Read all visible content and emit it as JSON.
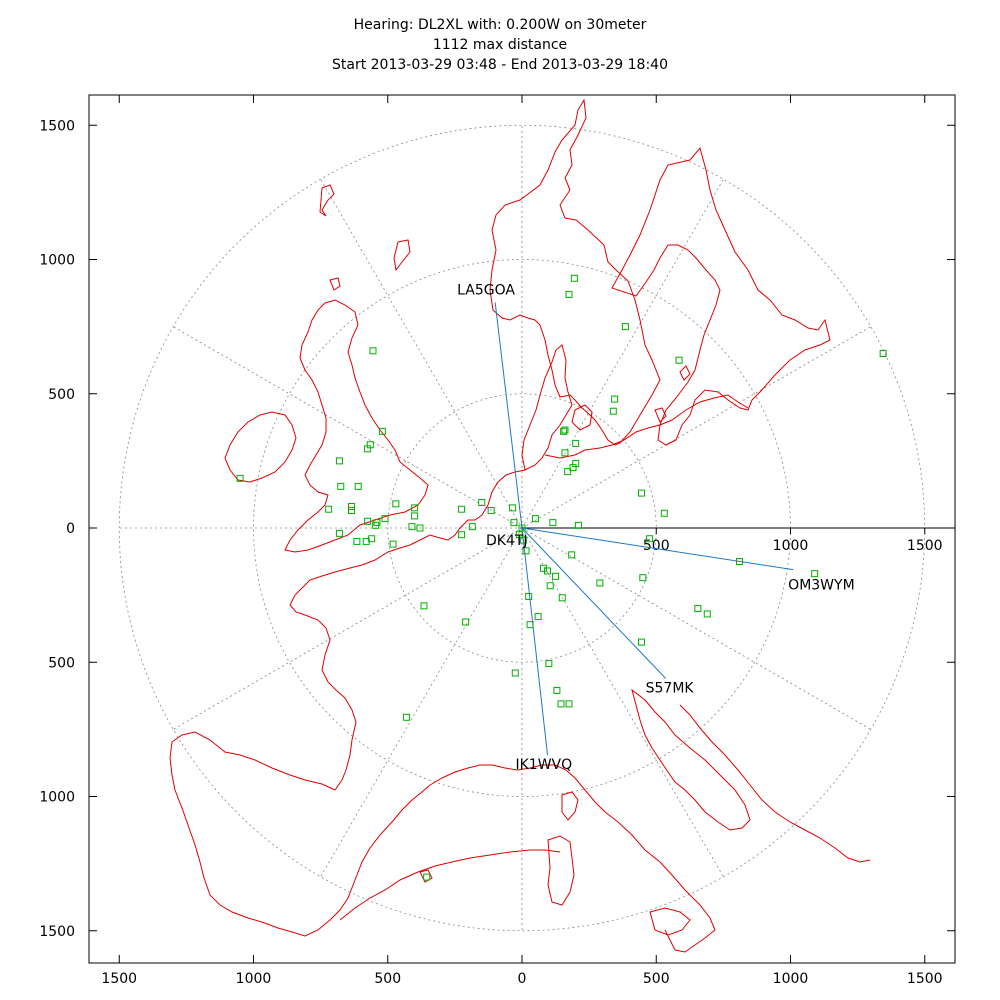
{
  "title": {
    "line1": "Hearing: DL2XL with: 0.200W on 30meter",
    "line2": "1112 max distance",
    "line3": "Start 2013-03-29 03:48 - End 2013-03-29 18:40"
  },
  "colors": {
    "coast": "#e00000",
    "spot": "#00b000",
    "link": "#1e78c8",
    "grid": "#888888",
    "frame": "#000000"
  },
  "chart_data": {
    "type": "scatter",
    "xlim": [
      -1500,
      1500
    ],
    "ylim": [
      -1500,
      1500
    ],
    "x_ticks": [
      "1500",
      "1000",
      "500",
      "0",
      "500",
      "1000",
      "1500"
    ],
    "x_tick_values": [
      -1500,
      -1000,
      -500,
      0,
      500,
      1000,
      1500
    ],
    "y_ticks": [
      "1500",
      "1000",
      "500",
      "0",
      "500",
      "1000",
      "1500"
    ],
    "y_tick_values": [
      1500,
      1000,
      500,
      0,
      -500,
      -1000,
      -1500
    ],
    "inner_axis_ticks": [
      "500",
      "1000",
      "1500"
    ],
    "inner_axis_tick_values": [
      500,
      1000,
      1500
    ],
    "range_rings": [
      500,
      1000,
      1500
    ],
    "grid": true,
    "center_station": {
      "label": "DK4TJ",
      "x": 0,
      "y": 0
    },
    "stations": [
      {
        "label": "LA5GOA",
        "x": -100,
        "y": 840
      },
      {
        "label": "OM3WYM",
        "x": 1010,
        "y": -155
      },
      {
        "label": "S57MK",
        "x": 535,
        "y": -560
      },
      {
        "label": "IK1WVQ",
        "x": 95,
        "y": -845
      }
    ],
    "spots": [
      [
        195,
        930
      ],
      [
        175,
        870
      ],
      [
        385,
        750
      ],
      [
        1345,
        650
      ],
      [
        585,
        625
      ],
      [
        -555,
        660
      ],
      [
        345,
        480
      ],
      [
        340,
        435
      ],
      [
        160,
        365
      ],
      [
        155,
        360
      ],
      [
        200,
        315
      ],
      [
        160,
        280
      ],
      [
        200,
        240
      ],
      [
        190,
        225
      ],
      [
        170,
        210
      ],
      [
        -520,
        360
      ],
      [
        -565,
        310
      ],
      [
        -575,
        295
      ],
      [
        -680,
        250
      ],
      [
        -1050,
        185
      ],
      [
        -675,
        155
      ],
      [
        -610,
        155
      ],
      [
        -470,
        90
      ],
      [
        -635,
        80
      ],
      [
        -635,
        65
      ],
      [
        -720,
        70
      ],
      [
        -400,
        75
      ],
      [
        -400,
        45
      ],
      [
        -510,
        35
      ],
      [
        -575,
        25
      ],
      [
        -540,
        20
      ],
      [
        -545,
        10
      ],
      [
        -410,
        5
      ],
      [
        -380,
        0
      ],
      [
        -680,
        -20
      ],
      [
        -615,
        -50
      ],
      [
        -580,
        -50
      ],
      [
        -560,
        -40
      ],
      [
        -480,
        -60
      ],
      [
        -150,
        95
      ],
      [
        -225,
        70
      ],
      [
        -115,
        65
      ],
      [
        -35,
        75
      ],
      [
        -30,
        20
      ],
      [
        -185,
        5
      ],
      [
        -225,
        -25
      ],
      [
        -10,
        -25
      ],
      [
        5,
        -45
      ],
      [
        15,
        -85
      ],
      [
        50,
        35
      ],
      [
        115,
        20
      ],
      [
        210,
        10
      ],
      [
        445,
        130
      ],
      [
        475,
        -40
      ],
      [
        530,
        55
      ],
      [
        185,
        -100
      ],
      [
        290,
        -205
      ],
      [
        450,
        -185
      ],
      [
        655,
        -300
      ],
      [
        690,
        -320
      ],
      [
        810,
        -125
      ],
      [
        1090,
        -170
      ],
      [
        80,
        -150
      ],
      [
        95,
        -160
      ],
      [
        125,
        -180
      ],
      [
        150,
        -260
      ],
      [
        25,
        -255
      ],
      [
        30,
        -360
      ],
      [
        60,
        -330
      ],
      [
        105,
        -215
      ],
      [
        445,
        -425
      ],
      [
        -365,
        -290
      ],
      [
        -210,
        -350
      ],
      [
        -25,
        -540
      ],
      [
        100,
        -505
      ],
      [
        130,
        -605
      ],
      [
        145,
        -655
      ],
      [
        175,
        -655
      ],
      [
        -430,
        -705
      ],
      [
        -355,
        -1300
      ]
    ]
  }
}
